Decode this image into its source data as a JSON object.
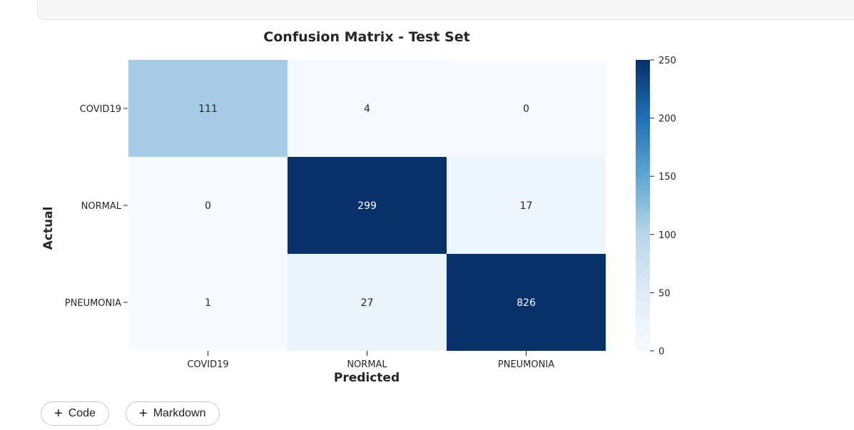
{
  "code_cell": {
    "text_prefix": "_",
    "text": "(                                              ,                   ,                         ,  ))"
  },
  "chart_data": {
    "type": "heatmap",
    "title": "Confusion Matrix - Test Set",
    "xlabel": "Predicted",
    "ylabel": "Actual",
    "x_categories": [
      "COVID19",
      "NORMAL",
      "PNEUMONIA"
    ],
    "y_categories": [
      "COVID19",
      "NORMAL",
      "PNEUMONIA"
    ],
    "values": [
      [
        111,
        4,
        0
      ],
      [
        0,
        299,
        17
      ],
      [
        1,
        27,
        826
      ]
    ],
    "colormap": "Blues",
    "vmin": 0,
    "vmax": 250,
    "colorbar_ticks": [
      0,
      50,
      100,
      150,
      200,
      250
    ]
  },
  "toolbar": {
    "code_label": "Code",
    "markdown_label": "Markdown",
    "plus_glyph": "+"
  }
}
